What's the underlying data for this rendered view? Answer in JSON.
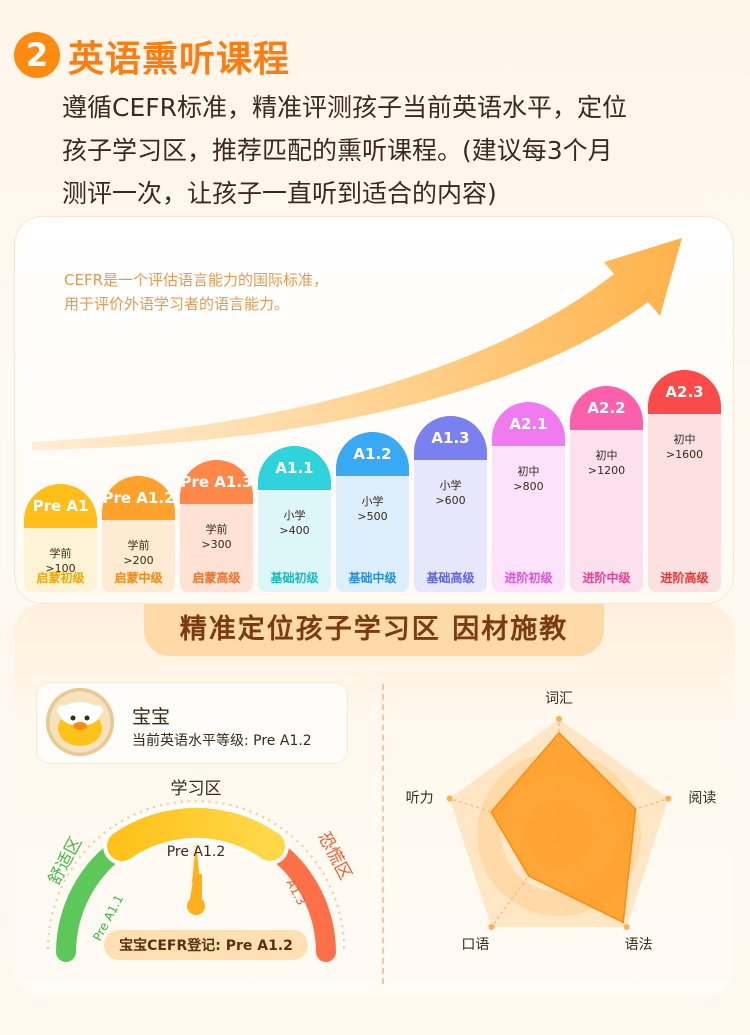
{
  "header": {
    "number": "2",
    "title": "英语熏听课程",
    "description_lines": [
      "遵循CEFR标准，精准评测孩子当前英语水平，定位",
      "孩子学习区，推荐匹配的熏听课程。(建议每3个月",
      "测评一次，让孩子一直听到适合的内容)"
    ]
  },
  "cefr_note": {
    "line1": "CEFR是一个评估语言能力的国际标准，",
    "line2": "用于评价外语学习者的语言能力。"
  },
  "levels": [
    {
      "code": "Pre A1",
      "stage": "学前",
      "words": ">100",
      "name": "启蒙初级",
      "cap_color": "#ffbe1a",
      "body_color": "#fff3d6",
      "name_color": "#f0a800"
    },
    {
      "code": "Pre A1.2",
      "stage": "学前",
      "words": ">200",
      "name": "启蒙中级",
      "cap_color": "#ffa12a",
      "body_color": "#ffebd2",
      "name_color": "#f08a10"
    },
    {
      "code": "Pre A1.3",
      "stage": "学前",
      "words": ">300",
      "name": "启蒙高级",
      "cap_color": "#ff8748",
      "body_color": "#ffe2d4",
      "name_color": "#f0702a"
    },
    {
      "code": "A1.1",
      "stage": "小学",
      "words": ">400",
      "name": "基础初级",
      "cap_color": "#2ed3dc",
      "body_color": "#ddf7f8",
      "name_color": "#1cb8c0"
    },
    {
      "code": "A1.2",
      "stage": "小学",
      "words": ">500",
      "name": "基础中级",
      "cap_color": "#39a8f5",
      "body_color": "#ddeefc",
      "name_color": "#2690e0"
    },
    {
      "code": "A1.3",
      "stage": "小学",
      "words": ">600",
      "name": "基础高级",
      "cap_color": "#7a80f0",
      "body_color": "#e6e6fc",
      "name_color": "#6066e0"
    },
    {
      "code": "A2.1",
      "stage": "初中",
      "words": ">800",
      "name": "进阶初级",
      "cap_color": "#f07af0",
      "body_color": "#fde2fb",
      "name_color": "#e050e0"
    },
    {
      "code": "A2.2",
      "stage": "初中",
      "words": ">1200",
      "name": "进阶中级",
      "cap_color": "#fb5fae",
      "body_color": "#fde0ee",
      "name_color": "#ef3f95"
    },
    {
      "code": "A2.3",
      "stage": "初中",
      "words": ">1600",
      "name": "进阶高级",
      "cap_color": "#fb4a4a",
      "body_color": "#fde0e0",
      "name_color": "#ee3535"
    }
  ],
  "zone": {
    "banner": "精准定位孩子学习区 因材施教",
    "baby_name": "宝宝",
    "baby_level": "当前英语水平等级: Pre A1.2",
    "gauge": {
      "top_label": "学习区",
      "left_zone": "舒适区",
      "right_zone": "恐慌区",
      "center_level": "Pre A1.2",
      "left_level": "Pre A1.1",
      "right_level": "A1.3",
      "result": "宝宝CEFR登记: Pre A1.2"
    },
    "radar": {
      "axes": [
        "词汇",
        "阅读",
        "语法",
        "口语",
        "听力"
      ],
      "values": [
        0.88,
        0.7,
        0.95,
        0.45,
        0.62
      ],
      "fill_color": "#ff9a1e"
    }
  }
}
